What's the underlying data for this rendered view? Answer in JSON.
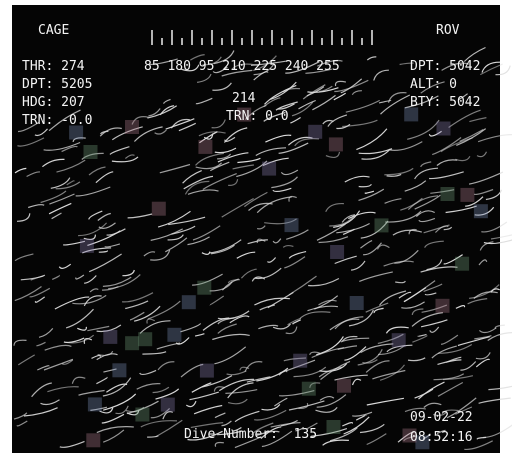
{
  "header": {
    "left": "CAGE",
    "right": "ROV",
    "heading_tape": "85 180 95 210 225 240 255"
  },
  "left_panel": [
    "THR: 274",
    "DPT: 5205",
    "HDG: 207",
    "TRN: -0.0"
  ],
  "right_panel": [
    "DPT: 5042",
    "ALT: 0",
    "BTY: 5042"
  ],
  "center": {
    "heading": "214",
    "turn": "TRN: 0.0"
  },
  "footer": {
    "dive": "Dive Number:  135",
    "date": "09-02-22",
    "time": "08:52:16"
  }
}
